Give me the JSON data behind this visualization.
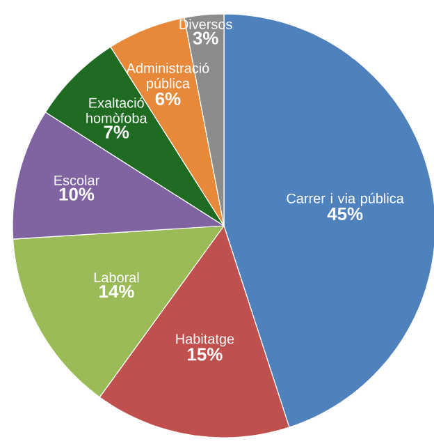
{
  "chart_data": {
    "type": "pie",
    "categories": [
      "Carrer i via pública",
      "Habitatge",
      "Laboral",
      "Escolar",
      "Exaltació homòfoba",
      "Administració pública",
      "Diversos"
    ],
    "values": [
      45,
      15,
      14,
      10,
      7,
      6,
      3
    ],
    "value_labels": [
      "45%",
      "15%",
      "14%",
      "10%",
      "7%",
      "6%",
      "3%"
    ],
    "colors": [
      "#4f81bd",
      "#c0504d",
      "#9bbb59",
      "#8064a2",
      "#1f6b22",
      "#e8893a",
      "#8c8c8c"
    ]
  }
}
